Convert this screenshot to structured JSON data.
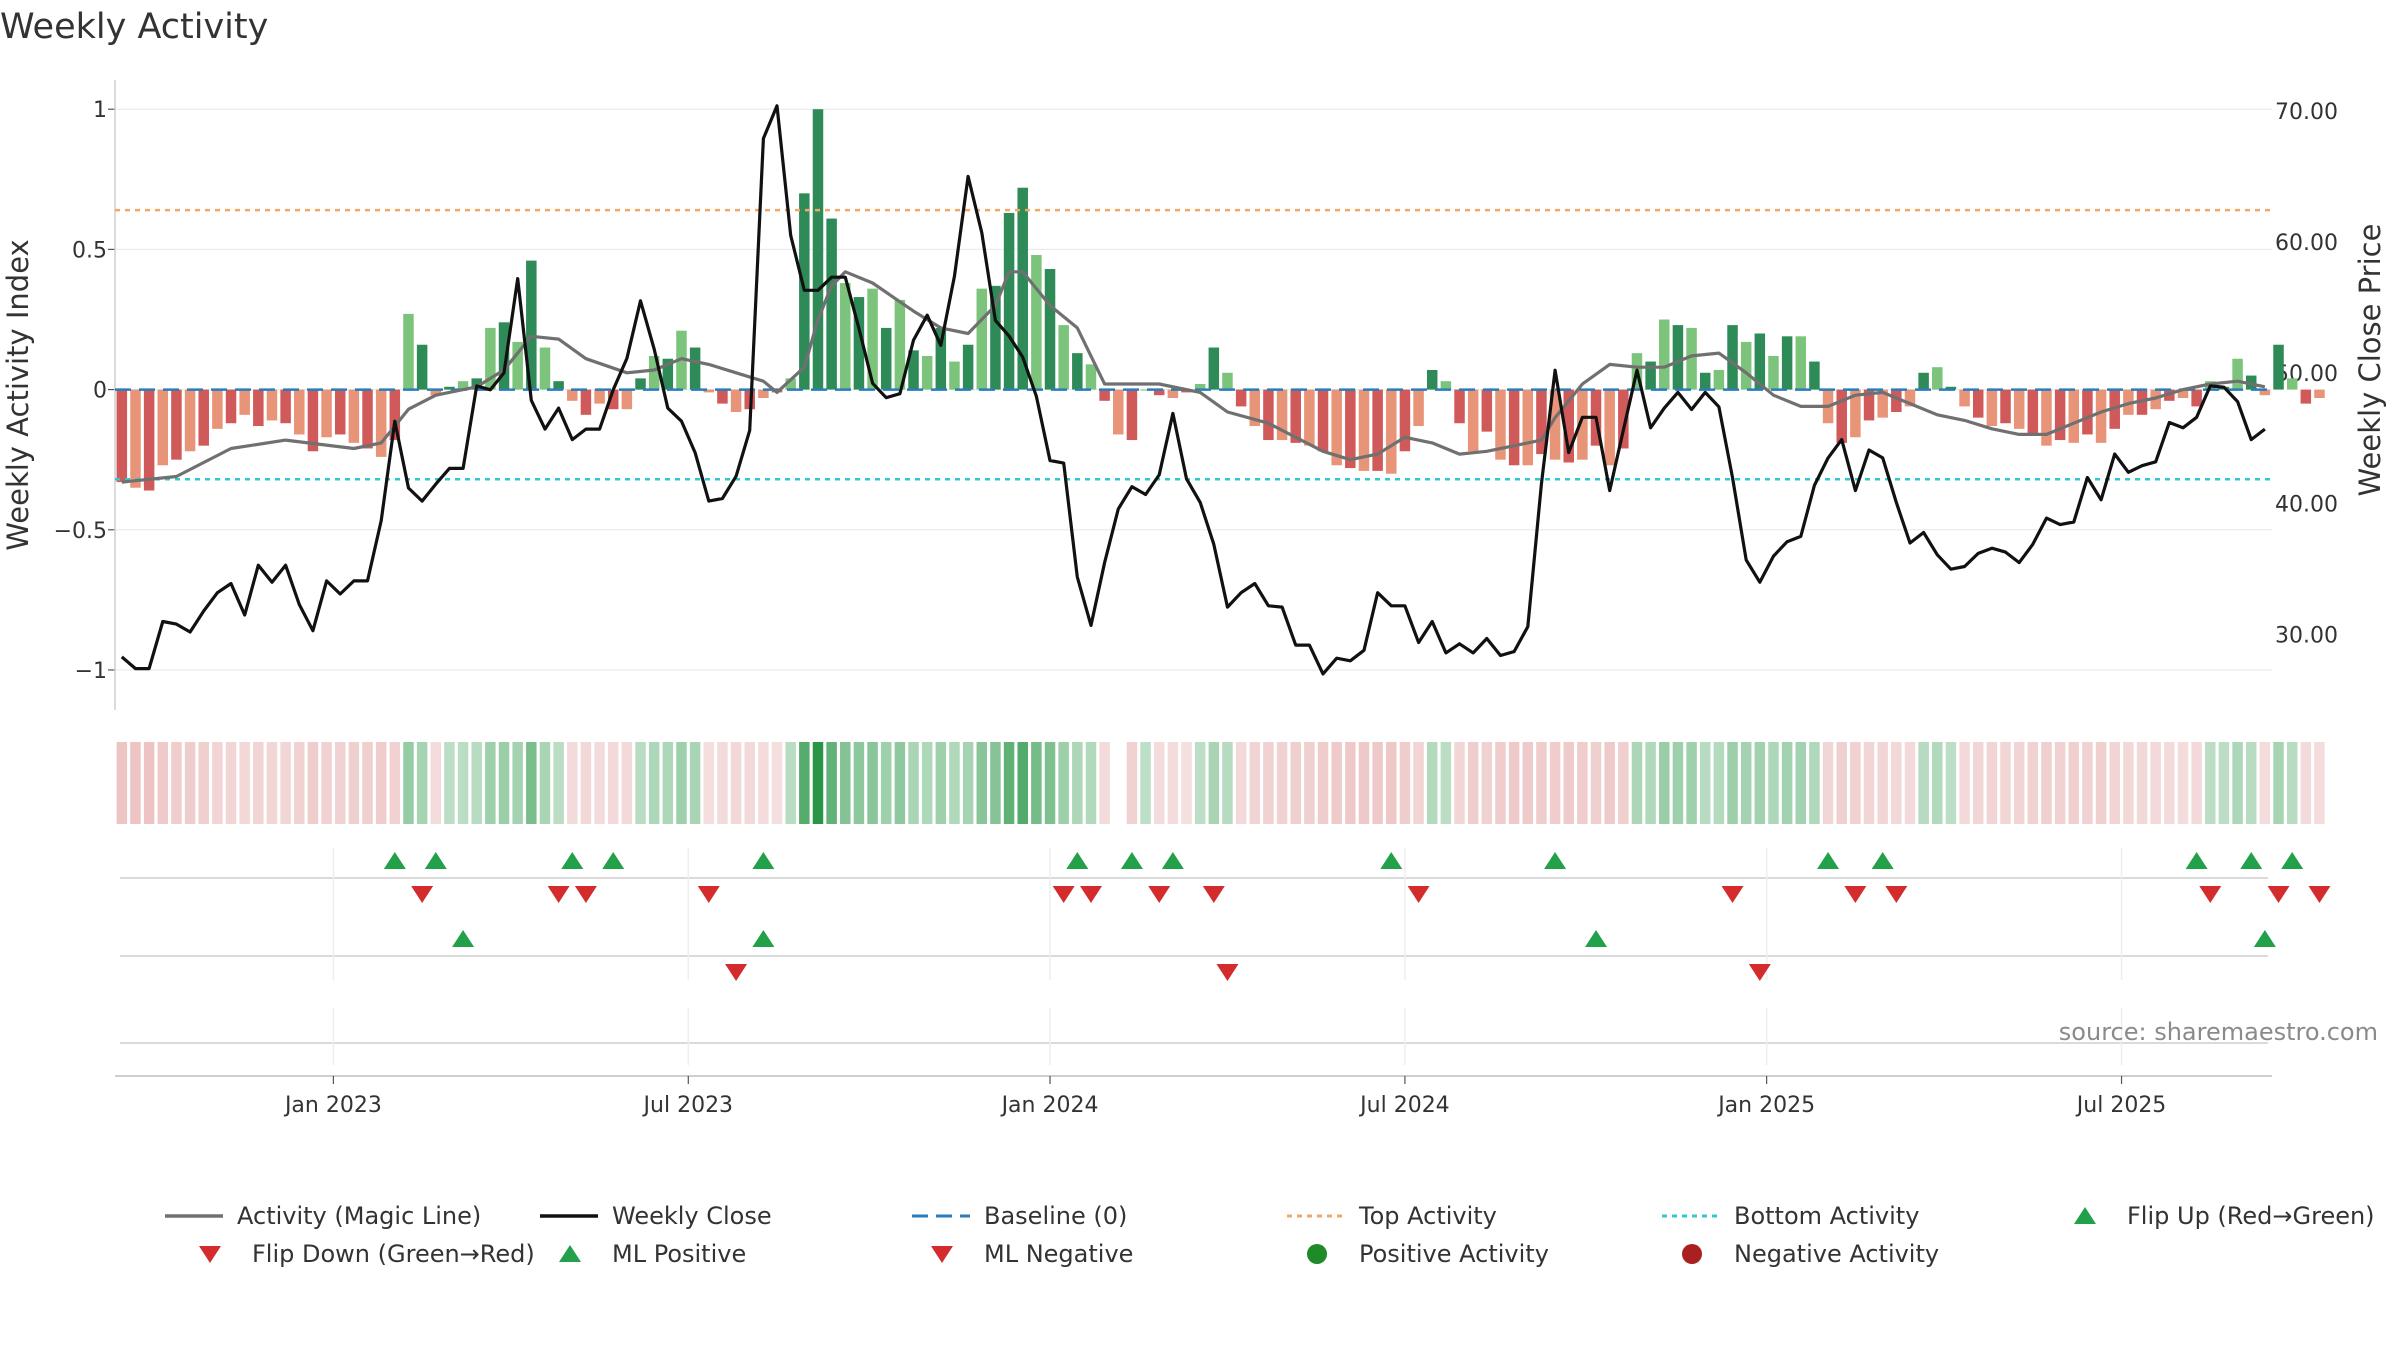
{
  "chart_data": {
    "type": "bar",
    "title": "Weekly Activity",
    "ylabel_left": "Weekly Activity Index",
    "ylabel_right": "Weekly Close Price",
    "source": "source: sharemaestro.com",
    "y_left_range": [
      -1.1,
      1.04
    ],
    "y_right_range": [
      24.7,
      70.85
    ],
    "y_left_ticks": [
      {
        "v": 1,
        "label": "1"
      },
      {
        "v": 0.5,
        "label": "0.5"
      },
      {
        "v": 0,
        "label": "0"
      },
      {
        "v": -0.5,
        "label": "−0.5"
      },
      {
        "v": -1,
        "label": "−1"
      }
    ],
    "y_right_ticks": [
      {
        "v": 70,
        "label": "70.00"
      },
      {
        "v": 60,
        "label": "60.00"
      },
      {
        "v": 50,
        "label": "50.00"
      },
      {
        "v": 40,
        "label": "40.00"
      },
      {
        "v": 30,
        "label": "30.00"
      }
    ],
    "x_ticks": [
      {
        "week": 15.5,
        "label": "Jan 2023"
      },
      {
        "week": 41.5,
        "label": "Jul 2023"
      },
      {
        "week": 68,
        "label": "Jan 2024"
      },
      {
        "week": 94,
        "label": "Jul 2024"
      },
      {
        "week": 120.5,
        "label": "Jan 2025"
      },
      {
        "week": 146.5,
        "label": "Jul 2025"
      }
    ],
    "reference_lines": {
      "baseline": 0,
      "top_activity": 0.64,
      "bottom_activity": -0.32
    },
    "activity_index": [
      -0.33,
      -0.35,
      -0.36,
      -0.27,
      -0.25,
      -0.22,
      -0.2,
      -0.14,
      -0.12,
      -0.09,
      -0.13,
      -0.11,
      -0.12,
      -0.16,
      -0.22,
      -0.17,
      -0.16,
      -0.19,
      -0.21,
      -0.24,
      -0.18,
      0.27,
      0.16,
      -0.02,
      0.01,
      0.03,
      0.04,
      0.22,
      0.24,
      0.17,
      0.46,
      0.15,
      0.03,
      -0.04,
      -0.09,
      -0.05,
      -0.07,
      -0.07,
      0.04,
      0.12,
      0.11,
      0.21,
      0.15,
      -0.01,
      -0.05,
      -0.08,
      -0.07,
      -0.03,
      -0.01,
      0.04,
      0.7,
      1.0,
      0.61,
      0.38,
      0.33,
      0.36,
      0.22,
      0.32,
      0.14,
      0.12,
      0.22,
      0.1,
      0.16,
      0.36,
      0.37,
      0.63,
      0.72,
      0.48,
      0.43,
      0.23,
      0.13,
      0.09,
      -0.04,
      -0.16,
      -0.18,
      0.0,
      -0.02,
      -0.03,
      -0.01,
      0.02,
      0.15,
      0.06,
      -0.06,
      -0.13,
      -0.18,
      -0.18,
      -0.19,
      -0.2,
      -0.22,
      -0.27,
      -0.28,
      -0.29,
      -0.29,
      -0.3,
      -0.22,
      -0.13,
      0.07,
      0.03,
      -0.12,
      -0.22,
      -0.15,
      -0.25,
      -0.27,
      -0.27,
      -0.23,
      -0.25,
      -0.26,
      -0.25,
      -0.2,
      -0.27,
      -0.21,
      0.13,
      0.1,
      0.25,
      0.23,
      0.22,
      0.06,
      0.07,
      0.23,
      0.17,
      0.2,
      0.12,
      0.19,
      0.19,
      0.1,
      -0.12,
      -0.19,
      -0.17,
      -0.11,
      -0.1,
      -0.08,
      -0.06,
      0.06,
      0.08,
      0.01,
      -0.06,
      -0.1,
      -0.13,
      -0.12,
      -0.14,
      -0.16,
      -0.2,
      -0.18,
      -0.19,
      -0.16,
      -0.19,
      -0.14,
      -0.09,
      -0.09,
      -0.07,
      -0.04,
      -0.03,
      -0.06,
      0.03,
      0.01,
      0.11,
      0.05,
      -0.02,
      0.16,
      0.04,
      -0.05,
      -0.03
    ],
    "magic_line": [
      {
        "w": 0,
        "v": -0.33
      },
      {
        "w": 4,
        "v": -0.31
      },
      {
        "w": 8,
        "v": -0.21
      },
      {
        "w": 12,
        "v": -0.18
      },
      {
        "w": 17,
        "v": -0.21
      },
      {
        "w": 19,
        "v": -0.19
      },
      {
        "w": 21,
        "v": -0.07
      },
      {
        "w": 23,
        "v": -0.02
      },
      {
        "w": 26,
        "v": 0.01
      },
      {
        "w": 28,
        "v": 0.07
      },
      {
        "w": 30,
        "v": 0.19
      },
      {
        "w": 32,
        "v": 0.18
      },
      {
        "w": 34,
        "v": 0.11
      },
      {
        "w": 37,
        "v": 0.06
      },
      {
        "w": 39,
        "v": 0.07
      },
      {
        "w": 41,
        "v": 0.11
      },
      {
        "w": 43,
        "v": 0.09
      },
      {
        "w": 45,
        "v": 0.06
      },
      {
        "w": 47,
        "v": 0.03
      },
      {
        "w": 48,
        "v": -0.01
      },
      {
        "w": 50,
        "v": 0.08
      },
      {
        "w": 51,
        "v": 0.25
      },
      {
        "w": 52,
        "v": 0.37
      },
      {
        "w": 53,
        "v": 0.42
      },
      {
        "w": 55,
        "v": 0.38
      },
      {
        "w": 58,
        "v": 0.28
      },
      {
        "w": 60,
        "v": 0.22
      },
      {
        "w": 62,
        "v": 0.2
      },
      {
        "w": 64,
        "v": 0.3
      },
      {
        "w": 65,
        "v": 0.42
      },
      {
        "w": 66,
        "v": 0.42
      },
      {
        "w": 68,
        "v": 0.3
      },
      {
        "w": 70,
        "v": 0.22
      },
      {
        "w": 72,
        "v": 0.02
      },
      {
        "w": 76,
        "v": 0.02
      },
      {
        "w": 79,
        "v": -0.01
      },
      {
        "w": 81,
        "v": -0.08
      },
      {
        "w": 84,
        "v": -0.12
      },
      {
        "w": 86,
        "v": -0.17
      },
      {
        "w": 88,
        "v": -0.22
      },
      {
        "w": 90,
        "v": -0.25
      },
      {
        "w": 92,
        "v": -0.23
      },
      {
        "w": 94,
        "v": -0.17
      },
      {
        "w": 96,
        "v": -0.19
      },
      {
        "w": 98,
        "v": -0.23
      },
      {
        "w": 100,
        "v": -0.22
      },
      {
        "w": 103,
        "v": -0.19
      },
      {
        "w": 104,
        "v": -0.18
      },
      {
        "w": 105,
        "v": -0.1
      },
      {
        "w": 107,
        "v": 0.02
      },
      {
        "w": 109,
        "v": 0.09
      },
      {
        "w": 111,
        "v": 0.08
      },
      {
        "w": 113,
        "v": 0.08
      },
      {
        "w": 115,
        "v": 0.12
      },
      {
        "w": 117,
        "v": 0.13
      },
      {
        "w": 119,
        "v": 0.06
      },
      {
        "w": 121,
        "v": -0.02
      },
      {
        "w": 123,
        "v": -0.06
      },
      {
        "w": 125,
        "v": -0.06
      },
      {
        "w": 127,
        "v": -0.02
      },
      {
        "w": 129,
        "v": -0.01
      },
      {
        "w": 131,
        "v": -0.05
      },
      {
        "w": 133,
        "v": -0.09
      },
      {
        "w": 135,
        "v": -0.11
      },
      {
        "w": 137,
        "v": -0.14
      },
      {
        "w": 139,
        "v": -0.16
      },
      {
        "w": 141,
        "v": -0.16
      },
      {
        "w": 143,
        "v": -0.12
      },
      {
        "w": 145,
        "v": -0.08
      },
      {
        "w": 147,
        "v": -0.05
      },
      {
        "w": 149,
        "v": -0.03
      },
      {
        "w": 151,
        "v": 0.0
      },
      {
        "w": 153,
        "v": 0.02
      },
      {
        "w": 155,
        "v": 0.03
      },
      {
        "w": 157,
        "v": 0.01
      }
    ],
    "weekly_close": [
      {
        "w": 0,
        "v": 28.3
      },
      {
        "w": 1,
        "v": 27.4
      },
      {
        "w": 2,
        "v": 27.4
      },
      {
        "w": 3,
        "v": 31.0
      },
      {
        "w": 4,
        "v": 30.8
      },
      {
        "w": 5,
        "v": 30.2
      },
      {
        "w": 6,
        "v": 31.8
      },
      {
        "w": 7,
        "v": 33.2
      },
      {
        "w": 8,
        "v": 33.9
      },
      {
        "w": 9,
        "v": 31.5
      },
      {
        "w": 10,
        "v": 35.3
      },
      {
        "w": 11,
        "v": 34.0
      },
      {
        "w": 12,
        "v": 35.3
      },
      {
        "w": 13,
        "v": 32.3
      },
      {
        "w": 14,
        "v": 30.3
      },
      {
        "w": 15,
        "v": 34.1
      },
      {
        "w": 16,
        "v": 33.1
      },
      {
        "w": 17,
        "v": 34.1
      },
      {
        "w": 18,
        "v": 34.1
      },
      {
        "w": 19,
        "v": 38.7
      },
      {
        "w": 20,
        "v": 46.3
      },
      {
        "w": 21,
        "v": 41.2
      },
      {
        "w": 22,
        "v": 40.2
      },
      {
        "w": 23,
        "v": 41.5
      },
      {
        "w": 24,
        "v": 42.7
      },
      {
        "w": 25,
        "v": 42.7
      },
      {
        "w": 26,
        "v": 49.0
      },
      {
        "w": 27,
        "v": 48.7
      },
      {
        "w": 28,
        "v": 50.0
      },
      {
        "w": 29,
        "v": 57.2
      },
      {
        "w": 30,
        "v": 47.9
      },
      {
        "w": 31,
        "v": 45.7
      },
      {
        "w": 32,
        "v": 47.3
      },
      {
        "w": 33,
        "v": 44.9
      },
      {
        "w": 34,
        "v": 45.7
      },
      {
        "w": 35,
        "v": 45.7
      },
      {
        "w": 36,
        "v": 48.7
      },
      {
        "w": 37,
        "v": 51.1
      },
      {
        "w": 38,
        "v": 55.5
      },
      {
        "w": 39,
        "v": 51.8
      },
      {
        "w": 40,
        "v": 47.3
      },
      {
        "w": 41,
        "v": 46.3
      },
      {
        "w": 42,
        "v": 43.9
      },
      {
        "w": 43,
        "v": 40.2
      },
      {
        "w": 44,
        "v": 40.4
      },
      {
        "w": 45,
        "v": 42.1
      },
      {
        "w": 46,
        "v": 45.6
      },
      {
        "w": 47,
        "v": 67.9
      },
      {
        "w": 48,
        "v": 70.4
      },
      {
        "w": 49,
        "v": 60.5
      },
      {
        "w": 50,
        "v": 56.3
      },
      {
        "w": 51,
        "v": 56.3
      },
      {
        "w": 52,
        "v": 57.3
      },
      {
        "w": 53,
        "v": 57.3
      },
      {
        "w": 54,
        "v": 53.4
      },
      {
        "w": 55,
        "v": 49.2
      },
      {
        "w": 56,
        "v": 48.1
      },
      {
        "w": 57,
        "v": 48.4
      },
      {
        "w": 58,
        "v": 52.5
      },
      {
        "w": 59,
        "v": 54.4
      },
      {
        "w": 60,
        "v": 52.1
      },
      {
        "w": 61,
        "v": 57.4
      },
      {
        "w": 62,
        "v": 65.0
      },
      {
        "w": 63,
        "v": 60.7
      },
      {
        "w": 64,
        "v": 54.0
      },
      {
        "w": 65,
        "v": 52.8
      },
      {
        "w": 66,
        "v": 51.2
      },
      {
        "w": 67,
        "v": 48.2
      },
      {
        "w": 68,
        "v": 43.3
      },
      {
        "w": 69,
        "v": 43.1
      },
      {
        "w": 70,
        "v": 34.4
      },
      {
        "w": 71,
        "v": 30.7
      },
      {
        "w": 72,
        "v": 35.5
      },
      {
        "w": 73,
        "v": 39.6
      },
      {
        "w": 74,
        "v": 41.3
      },
      {
        "w": 75,
        "v": 40.7
      },
      {
        "w": 76,
        "v": 42.2
      },
      {
        "w": 77,
        "v": 46.9
      },
      {
        "w": 78,
        "v": 41.9
      },
      {
        "w": 79,
        "v": 40.1
      },
      {
        "w": 80,
        "v": 36.9
      },
      {
        "w": 81,
        "v": 32.1
      },
      {
        "w": 82,
        "v": 33.2
      },
      {
        "w": 83,
        "v": 33.9
      },
      {
        "w": 84,
        "v": 32.2
      },
      {
        "w": 85,
        "v": 32.1
      },
      {
        "w": 86,
        "v": 29.2
      },
      {
        "w": 87,
        "v": 29.2
      },
      {
        "w": 88,
        "v": 27.0
      },
      {
        "w": 89,
        "v": 28.2
      },
      {
        "w": 90,
        "v": 28.0
      },
      {
        "w": 91,
        "v": 28.8
      },
      {
        "w": 92,
        "v": 33.2
      },
      {
        "w": 93,
        "v": 32.2
      },
      {
        "w": 94,
        "v": 32.2
      },
      {
        "w": 95,
        "v": 29.4
      },
      {
        "w": 96,
        "v": 31.0
      },
      {
        "w": 97,
        "v": 28.6
      },
      {
        "w": 98,
        "v": 29.3
      },
      {
        "w": 99,
        "v": 28.6
      },
      {
        "w": 100,
        "v": 29.7
      },
      {
        "w": 101,
        "v": 28.4
      },
      {
        "w": 102,
        "v": 28.7
      },
      {
        "w": 103,
        "v": 30.6
      },
      {
        "w": 104,
        "v": 41.5
      },
      {
        "w": 105,
        "v": 50.2
      },
      {
        "w": 106,
        "v": 43.9
      },
      {
        "w": 107,
        "v": 46.6
      },
      {
        "w": 108,
        "v": 46.6
      },
      {
        "w": 109,
        "v": 41.0
      },
      {
        "w": 110,
        "v": 45.6
      },
      {
        "w": 111,
        "v": 50.2
      },
      {
        "w": 112,
        "v": 45.8
      },
      {
        "w": 113,
        "v": 47.3
      },
      {
        "w": 114,
        "v": 48.5
      },
      {
        "w": 115,
        "v": 47.2
      },
      {
        "w": 116,
        "v": 48.5
      },
      {
        "w": 117,
        "v": 47.4
      },
      {
        "w": 118,
        "v": 42.0
      },
      {
        "w": 119,
        "v": 35.7
      },
      {
        "w": 120,
        "v": 34.0
      },
      {
        "w": 121,
        "v": 36.0
      },
      {
        "w": 122,
        "v": 37.1
      },
      {
        "w": 123,
        "v": 37.5
      },
      {
        "w": 124,
        "v": 41.4
      },
      {
        "w": 125,
        "v": 43.5
      },
      {
        "w": 126,
        "v": 44.9
      },
      {
        "w": 127,
        "v": 41.0
      },
      {
        "w": 128,
        "v": 44.1
      },
      {
        "w": 129,
        "v": 43.5
      },
      {
        "w": 130,
        "v": 40.1
      },
      {
        "w": 131,
        "v": 37.0
      },
      {
        "w": 132,
        "v": 37.8
      },
      {
        "w": 133,
        "v": 36.1
      },
      {
        "w": 134,
        "v": 35.0
      },
      {
        "w": 135,
        "v": 35.2
      },
      {
        "w": 136,
        "v": 36.2
      },
      {
        "w": 137,
        "v": 36.6
      },
      {
        "w": 138,
        "v": 36.3
      },
      {
        "w": 139,
        "v": 35.5
      },
      {
        "w": 140,
        "v": 36.9
      },
      {
        "w": 141,
        "v": 38.9
      },
      {
        "w": 142,
        "v": 38.4
      },
      {
        "w": 143,
        "v": 38.6
      },
      {
        "w": 144,
        "v": 42.0
      },
      {
        "w": 145,
        "v": 40.3
      },
      {
        "w": 146,
        "v": 43.8
      },
      {
        "w": 147,
        "v": 42.4
      },
      {
        "w": 148,
        "v": 42.9
      },
      {
        "w": 149,
        "v": 43.2
      },
      {
        "w": 150,
        "v": 46.2
      },
      {
        "w": 151,
        "v": 45.8
      },
      {
        "w": 152,
        "v": 46.6
      },
      {
        "w": 153,
        "v": 49.0
      },
      {
        "w": 154,
        "v": 48.9
      },
      {
        "w": 155,
        "v": 47.8
      },
      {
        "w": 156,
        "v": 44.9
      },
      {
        "w": 157,
        "v": 45.7
      }
    ],
    "flip_up_weeks": [
      20,
      23,
      33,
      36,
      47,
      70,
      74,
      77,
      93,
      105,
      125,
      129,
      152,
      156,
      159
    ],
    "flip_down_weeks": [
      22,
      32,
      34,
      43,
      69,
      71,
      76,
      80,
      95,
      118,
      127,
      130,
      153,
      158,
      161
    ],
    "ml_positive_weeks": [
      25,
      47,
      108,
      157
    ],
    "ml_negative_weeks": [
      45,
      81,
      120
    ],
    "legend": [
      {
        "key": "magic",
        "label": "Activity (Magic Line)",
        "color": "#707070"
      },
      {
        "key": "close",
        "label": "Weekly Close",
        "color": "#111111"
      },
      {
        "key": "baseline",
        "label": "Baseline (0)",
        "color": "#2a7db8"
      },
      {
        "key": "top",
        "label": "Top Activity",
        "color": "#f0a868"
      },
      {
        "key": "bottom",
        "label": "Bottom Activity",
        "color": "#30c8d0"
      },
      {
        "key": "flipup",
        "label": "Flip Up (Red→Green)",
        "color": "#23a04a"
      },
      {
        "key": "flipdown",
        "label": "Flip Down (Green→Red)",
        "color": "#d42c2c"
      },
      {
        "key": "mlpos",
        "label": "ML Positive",
        "color": "#23a04a"
      },
      {
        "key": "mlneg",
        "label": "ML Negative",
        "color": "#d42c2c"
      },
      {
        "key": "posact",
        "label": "Positive Activity",
        "color": "#1e8a28"
      },
      {
        "key": "negact",
        "label": "Negative Activity",
        "color": "#aa2020"
      }
    ]
  }
}
